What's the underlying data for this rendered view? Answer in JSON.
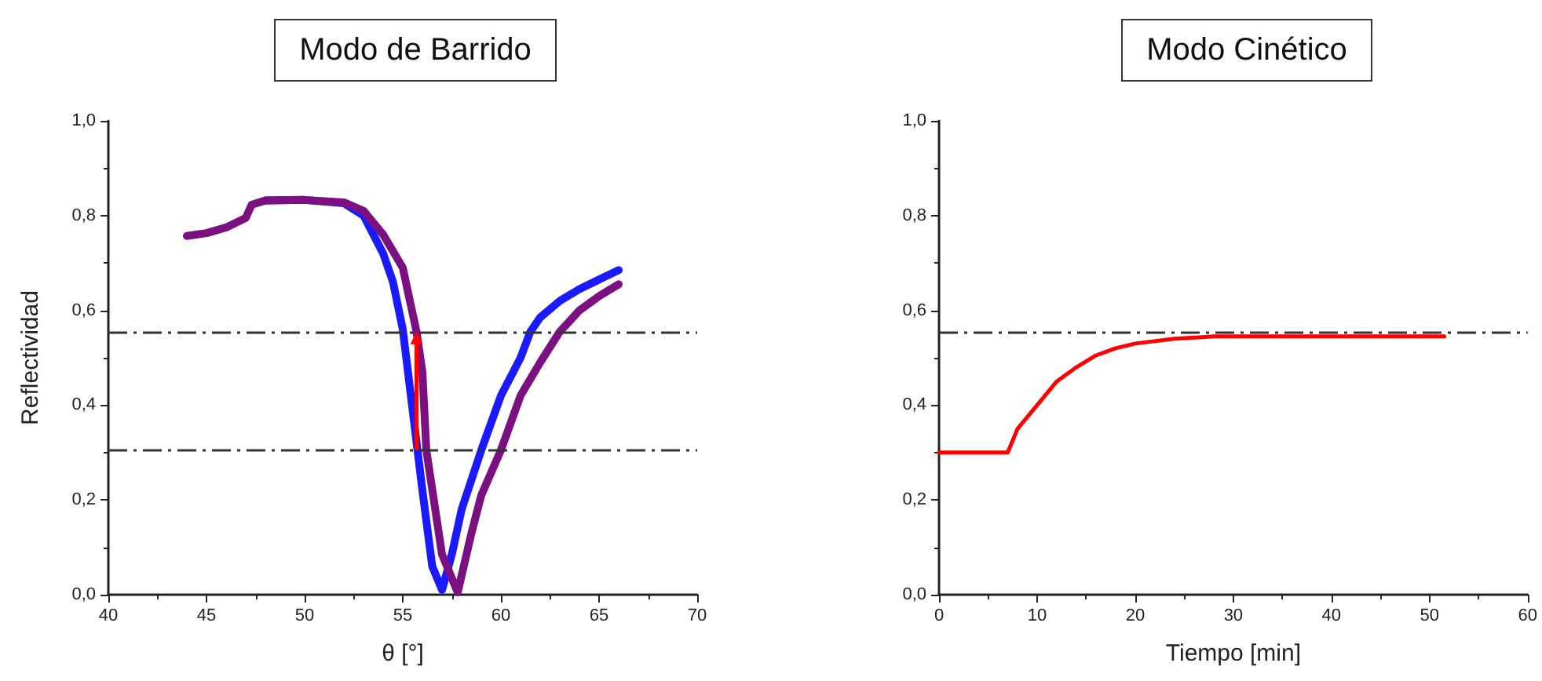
{
  "chart_data": [
    {
      "type": "line",
      "title": "Modo de Barrido",
      "xlabel": "θ [°]",
      "ylabel": "Reflectividad",
      "marker": "none",
      "line_style": "solid",
      "xlim": [
        40,
        70
      ],
      "xticks": [
        40,
        45,
        50,
        55,
        60,
        65,
        70
      ],
      "ylim": [
        0,
        1
      ],
      "yticks": [
        {
          "value": 0,
          "label": "0,0"
        },
        {
          "value": 0.2,
          "label": "0,2"
        },
        {
          "value": 0.4,
          "label": "0,4"
        },
        {
          "value": 0.6,
          "label": "0,6"
        },
        {
          "value": 0.8,
          "label": "0,8"
        },
        {
          "value": 1,
          "label": "1,0"
        }
      ],
      "series": [
        {
          "color": "#1a1aff",
          "x": [
            48,
            50,
            52,
            53,
            54,
            54.5,
            55,
            55.5,
            56,
            56.5,
            57,
            57.5,
            58,
            59,
            60,
            61,
            61.5,
            62,
            63,
            64,
            65,
            66
          ],
          "values": [
            0.832,
            0.833,
            0.826,
            0.8,
            0.72,
            0.66,
            0.56,
            0.39,
            0.22,
            0.06,
            0.01,
            0.085,
            0.18,
            0.305,
            0.42,
            0.5,
            0.555,
            0.585,
            0.62,
            0.645,
            0.665,
            0.685
          ]
        },
        {
          "color": "#7b1080",
          "x": [
            44,
            45,
            46,
            47,
            47.3,
            48,
            50,
            52,
            53,
            54,
            55,
            55.7,
            56,
            56.2,
            57,
            57.8,
            58.5,
            59,
            60,
            61,
            62,
            63,
            64,
            65,
            66
          ],
          "values": [
            0.757,
            0.763,
            0.775,
            0.795,
            0.823,
            0.832,
            0.833,
            0.828,
            0.81,
            0.76,
            0.69,
            0.555,
            0.47,
            0.305,
            0.085,
            0.005,
            0.13,
            0.21,
            0.305,
            0.42,
            0.49,
            0.555,
            0.6,
            0.63,
            0.655
          ]
        }
      ],
      "ref_lines": [
        {
          "axis": "y",
          "value": 0.555,
          "color": "#333333",
          "line_style": "dashed"
        },
        {
          "axis": "y",
          "value": 0.305,
          "color": "#333333",
          "line_style": "dashed"
        }
      ]
    },
    {
      "type": "line",
      "title": "Modo Cinético",
      "xlabel": "Tiempo [min]",
      "marker": "none",
      "line_style": "solid",
      "xlim": [
        0,
        60
      ],
      "xticks": [
        0,
        10,
        20,
        30,
        40,
        50,
        60
      ],
      "ylim": [
        0,
        1
      ],
      "yticks": [
        {
          "value": 0,
          "label": "0,0"
        },
        {
          "value": 0.2,
          "label": "0,2"
        },
        {
          "value": 0.4,
          "label": "0,4"
        },
        {
          "value": 0.6,
          "label": "0,6"
        },
        {
          "value": 0.8,
          "label": "0,8"
        },
        {
          "value": 1,
          "label": "1,0"
        }
      ],
      "series": [
        {
          "color": "#ff0000",
          "x": [
            0,
            7,
            8,
            10,
            12,
            14,
            16,
            18,
            20,
            24,
            28,
            51.5
          ],
          "values": [
            0.3,
            0.3,
            0.35,
            0.4,
            0.45,
            0.48,
            0.505,
            0.52,
            0.53,
            0.54,
            0.545,
            0.545
          ]
        }
      ],
      "ref_lines": [
        {
          "axis": "y",
          "value": 0.555,
          "color": "#333333",
          "line_style": "dashed"
        }
      ]
    }
  ]
}
